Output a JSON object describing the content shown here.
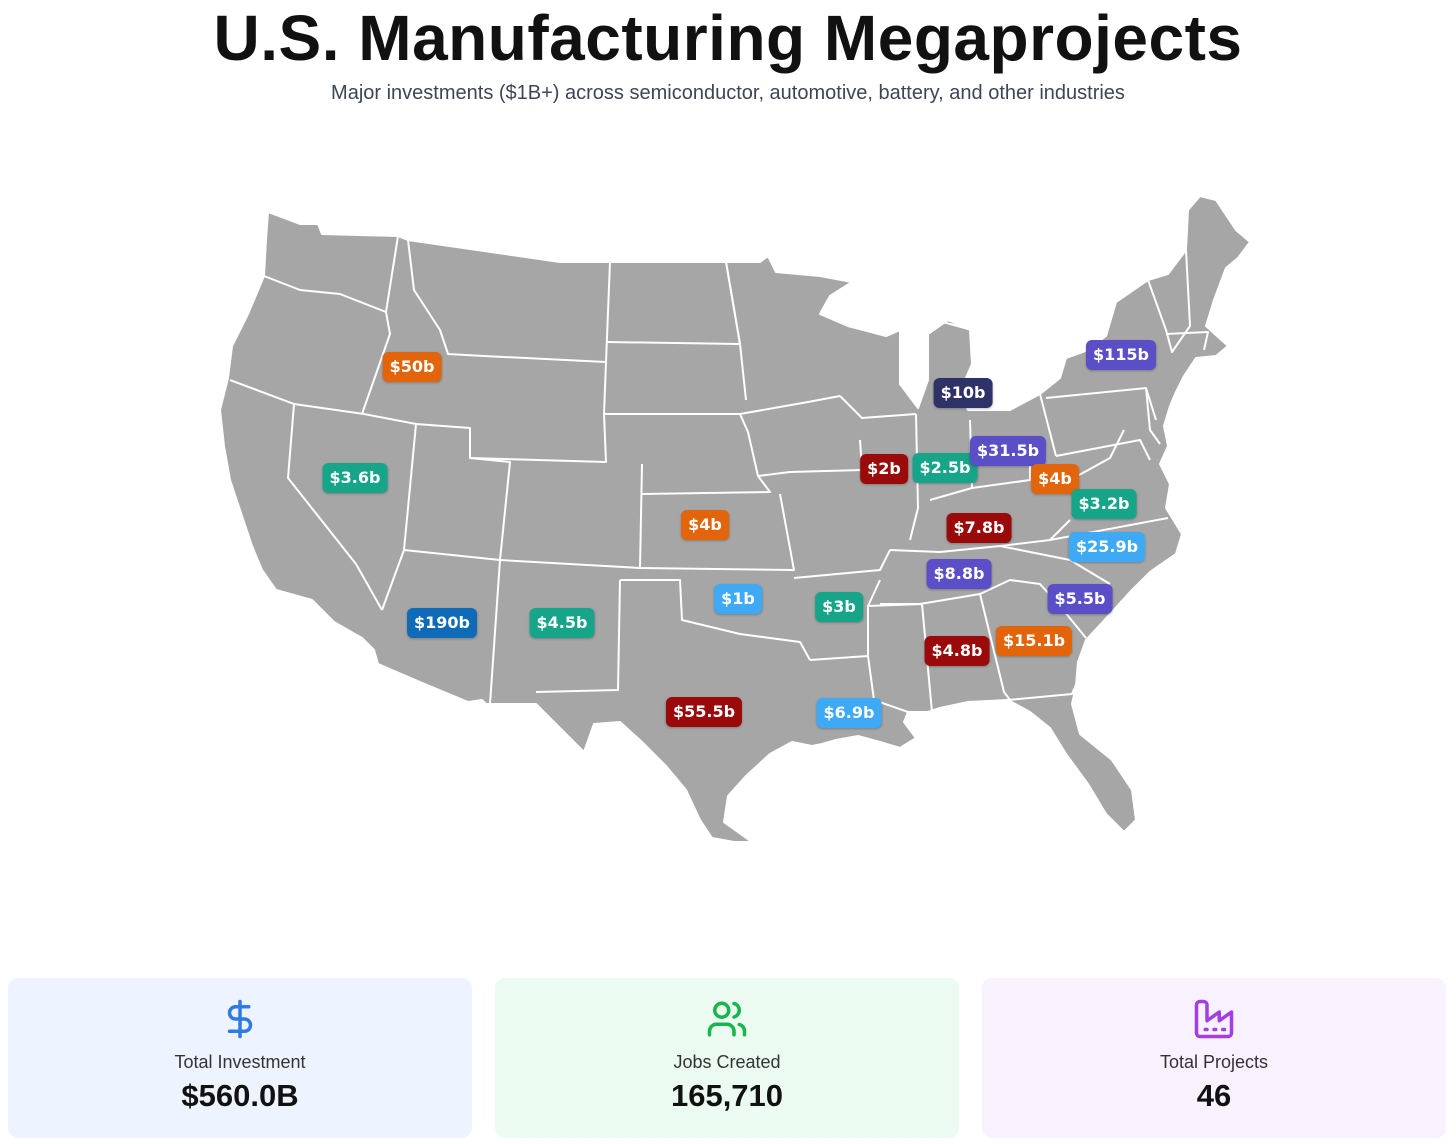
{
  "header": {
    "title": "U.S. Manufacturing Megaprojects",
    "subtitle": "Major investments ($1B+) across semiconductor, automotive, battery, and other industries"
  },
  "colors": {
    "map_fill": "#a6a6a6",
    "map_border": "#ffffff",
    "orange": "#e2650c",
    "teal": "#17a589",
    "purple": "#5b4fc7",
    "navy": "#2f3266",
    "red": "#9b0a0a",
    "sky": "#3ea9f5",
    "blue": "#0f6bb8"
  },
  "map": {
    "projects": [
      {
        "state": "Idaho",
        "label": "$50b",
        "color": "#e2650c"
      },
      {
        "state": "Nevada",
        "label": "$3.6b",
        "color": "#17a589"
      },
      {
        "state": "Arizona",
        "label": "$190b",
        "color": "#0f6bb8"
      },
      {
        "state": "New Mexico",
        "label": "$4.5b",
        "color": "#17a589"
      },
      {
        "state": "Kansas",
        "label": "$4b",
        "color": "#e2650c"
      },
      {
        "state": "Oklahoma",
        "label": "$1b",
        "color": "#3ea9f5"
      },
      {
        "state": "Texas",
        "label": "$55.5b",
        "color": "#9b0a0a"
      },
      {
        "state": "Arkansas",
        "label": "$3b",
        "color": "#17a589"
      },
      {
        "state": "Louisiana",
        "label": "$6.9b",
        "color": "#3ea9f5"
      },
      {
        "state": "Illinois",
        "label": "$2b",
        "color": "#9b0a0a"
      },
      {
        "state": "Indiana",
        "label": "$2.5b",
        "color": "#17a589"
      },
      {
        "state": "Michigan",
        "label": "$10b",
        "color": "#2f3266"
      },
      {
        "state": "Ohio",
        "label": "$31.5b",
        "color": "#5b4fc7"
      },
      {
        "state": "West Virginia",
        "label": "$4b",
        "color": "#e2650c"
      },
      {
        "state": "Virginia",
        "label": "$3.2b",
        "color": "#17a589"
      },
      {
        "state": "Kentucky",
        "label": "$7.8b",
        "color": "#9b0a0a"
      },
      {
        "state": "North Carolina",
        "label": "$25.9b",
        "color": "#3ea9f5"
      },
      {
        "state": "Tennessee",
        "label": "$8.8b",
        "color": "#5b4fc7"
      },
      {
        "state": "South Carolina",
        "label": "$5.5b",
        "color": "#5b4fc7"
      },
      {
        "state": "Georgia",
        "label": "$15.1b",
        "color": "#e2650c"
      },
      {
        "state": "Alabama",
        "label": "$4.8b",
        "color": "#9b0a0a"
      },
      {
        "state": "New York",
        "label": "$115b",
        "color": "#5b4fc7"
      }
    ]
  },
  "stats": [
    {
      "label": "Total Investment",
      "value": "$560.0B",
      "icon": "dollar-icon",
      "bg": "#eef4ff",
      "accent": "#2f7ae5"
    },
    {
      "label": "Jobs Created",
      "value": "165,710",
      "icon": "users-icon",
      "bg": "#ebfbf1",
      "accent": "#18b54a"
    },
    {
      "label": "Total Projects",
      "value": "46",
      "icon": "factory-icon",
      "bg": "#f8f1ff",
      "accent": "#a23ee6"
    }
  ]
}
